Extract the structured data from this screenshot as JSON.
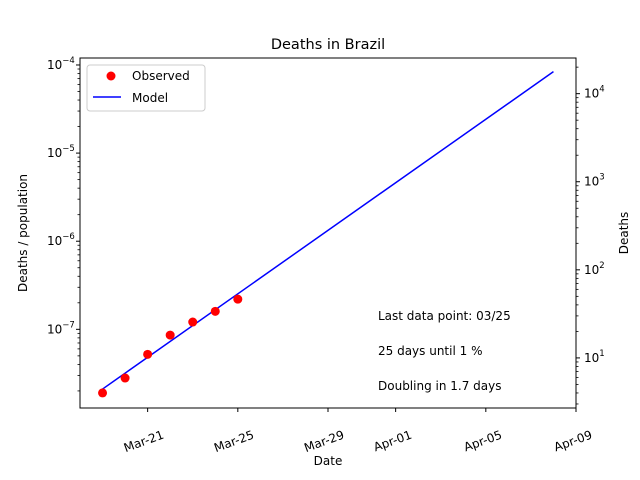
{
  "chart_data": {
    "type": "scatter",
    "title": "Deaths in Brazil",
    "xlabel": "Date",
    "ylabel": "Deaths / population",
    "ylabel_right": "Deaths",
    "x_axis": {
      "type": "date",
      "range": [
        "2020-03-18",
        "2020-04-09"
      ],
      "ticks": [
        {
          "date": "2020-03-21",
          "label": "Mar-21"
        },
        {
          "date": "2020-03-25",
          "label": "Mar-25"
        },
        {
          "date": "2020-03-29",
          "label": "Mar-29"
        },
        {
          "date": "2020-04-01",
          "label": "Apr-01"
        },
        {
          "date": "2020-04-05",
          "label": "Apr-05"
        },
        {
          "date": "2020-04-09",
          "label": "Apr-09"
        }
      ]
    },
    "y_axis_left": {
      "scale": "log",
      "range": [
        1.28e-08,
        0.00012
      ],
      "ticks": [
        {
          "value": 1e-07,
          "label": "10",
          "exp": "−7"
        },
        {
          "value": 1e-06,
          "label": "10",
          "exp": "−6"
        },
        {
          "value": 1e-05,
          "label": "10",
          "exp": "−5"
        },
        {
          "value": 0.0001,
          "label": "10",
          "exp": "−4"
        }
      ]
    },
    "y_axis_right": {
      "scale": "log",
      "range": [
        2.7,
        25400
      ],
      "ticks": [
        {
          "value": 10,
          "label": "10",
          "exp": "1"
        },
        {
          "value": 100,
          "label": "10",
          "exp": "2"
        },
        {
          "value": 1000,
          "label": "10",
          "exp": "3"
        },
        {
          "value": 10000,
          "label": "10",
          "exp": "4"
        }
      ]
    },
    "series": [
      {
        "name": "Observed",
        "kind": "scatter",
        "color": "#ff0000",
        "points": [
          {
            "x": "2020-03-19",
            "y": 1.9e-08
          },
          {
            "x": "2020-03-20",
            "y": 2.8e-08
          },
          {
            "x": "2020-03-21",
            "y": 5.2e-08
          },
          {
            "x": "2020-03-22",
            "y": 8.6e-08
          },
          {
            "x": "2020-03-23",
            "y": 1.21e-07
          },
          {
            "x": "2020-03-24",
            "y": 1.6e-07
          },
          {
            "x": "2020-03-25",
            "y": 2.2e-07
          }
        ]
      },
      {
        "name": "Model",
        "kind": "line",
        "color": "#0000ff",
        "points": [
          {
            "x": "2020-03-19",
            "y": 2.1e-08
          },
          {
            "x": "2020-04-08",
            "y": 8.4e-05
          }
        ]
      }
    ],
    "legend": {
      "position": "top-left"
    },
    "annotations": [
      "Last data point: 03/25",
      "25 days until 1 %",
      "Doubling in 1.7 days"
    ],
    "grid": false
  }
}
